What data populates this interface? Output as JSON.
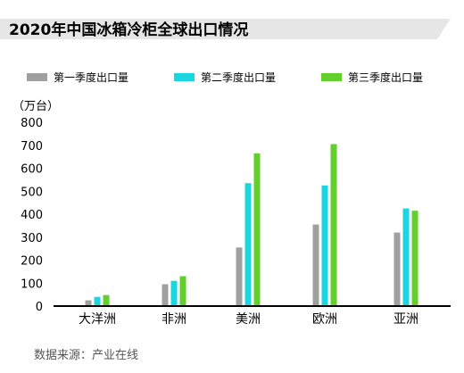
{
  "chart_data": {
    "type": "bar",
    "title": "2020年中国冰箱冷柜全球出口情况",
    "unit_label": "（万台）",
    "categories": [
      "大洋洲",
      "非洲",
      "美洲",
      "欧洲",
      "亚洲"
    ],
    "series": [
      {
        "name": "第一季度出口量",
        "color": "#a0a0a0",
        "values": [
          25,
          95,
          255,
          355,
          320
        ]
      },
      {
        "name": "第二季度出口量",
        "color": "#1ad6e0",
        "values": [
          40,
          110,
          535,
          525,
          425
        ]
      },
      {
        "name": "第三季度出口量",
        "color": "#62cf2c",
        "values": [
          48,
          130,
          665,
          705,
          415
        ]
      }
    ],
    "ylim": [
      0,
      800
    ],
    "yticks": [
      0,
      100,
      200,
      300,
      400,
      500,
      600,
      700,
      800
    ],
    "ytick_labels": [
      "0",
      "100",
      "200",
      "300",
      "400",
      "500",
      "600",
      "700",
      "800"
    ],
    "grid": false,
    "legend_position": "top",
    "source": "数据来源：产业在线"
  }
}
